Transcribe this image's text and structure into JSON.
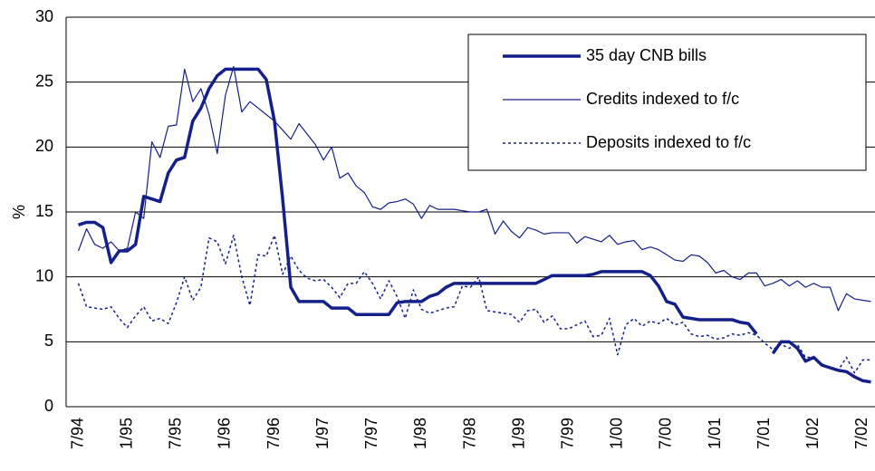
{
  "chart_data": {
    "type": "line",
    "y_label": "%",
    "ylim": [
      0,
      30
    ],
    "yticks": [
      0,
      5,
      10,
      15,
      20,
      25,
      30
    ],
    "grid": true,
    "legend": "upper right",
    "categories": [
      null,
      "7/94",
      null,
      null,
      null,
      null,
      null,
      "1/95",
      null,
      null,
      null,
      null,
      null,
      "7/95",
      null,
      null,
      null,
      null,
      null,
      "1/96",
      null,
      null,
      null,
      null,
      null,
      "7/96",
      null,
      null,
      null,
      null,
      null,
      "1/97",
      null,
      null,
      null,
      null,
      null,
      "7/97",
      null,
      null,
      null,
      null,
      null,
      "1/98",
      null,
      null,
      null,
      null,
      null,
      "7/98",
      null,
      null,
      null,
      null,
      null,
      "1/99",
      null,
      null,
      null,
      null,
      null,
      "7/99",
      null,
      null,
      null,
      null,
      null,
      "1/00",
      null,
      null,
      null,
      null,
      null,
      "7/00",
      null,
      null,
      null,
      null,
      null,
      "1/01",
      null,
      null,
      null,
      null,
      null,
      "7/01",
      null,
      null,
      null,
      null,
      null,
      "1/02",
      null,
      null,
      null,
      null,
      null,
      "7/02",
      null
    ],
    "series": [
      {
        "name": "35 day CNB bills",
        "color": "#14208a",
        "width": 3.5,
        "style": "solid",
        "values": [
          null,
          14,
          14.2,
          14.2,
          13.8,
          11.1,
          12,
          12,
          12.5,
          16.2,
          16,
          15.8,
          18,
          19,
          19.2,
          22,
          23,
          24.5,
          25.5,
          26,
          26,
          26,
          26,
          26,
          25.2,
          22,
          16,
          9.2,
          8.1,
          8.1,
          8.1,
          8.1,
          7.6,
          7.6,
          7.6,
          7.1,
          7.1,
          7.1,
          7.1,
          7.1,
          8.0,
          8.1,
          8.1,
          8.1,
          8.5,
          8.7,
          9.2,
          9.5,
          9.5,
          9.5,
          9.5,
          9.5,
          9.5,
          9.5,
          9.5,
          9.5,
          9.5,
          9.5,
          9.8,
          10.1,
          10.1,
          10.1,
          10.1,
          10.1,
          10.2,
          10.4,
          10.4,
          10.4,
          10.4,
          10.4,
          10.4,
          10.1,
          9.3,
          8.1,
          7.9,
          6.9,
          6.8,
          6.7,
          6.7,
          6.7,
          6.7,
          6.7,
          6.5,
          6.4,
          5.6,
          null,
          4.1,
          5.0,
          5.0,
          4.5,
          3.5,
          3.8,
          3.2,
          3.0,
          2.8,
          2.7,
          2.3,
          2.0,
          1.9
        ]
      },
      {
        "name": "Credits indexed to f/c",
        "color": "#14208a",
        "width": 1.2,
        "style": "solid",
        "values": [
          null,
          12,
          13.7,
          12.5,
          12.2,
          12.7,
          12,
          12.2,
          15,
          14.5,
          20.4,
          19.2,
          21.6,
          21.7,
          26,
          23.5,
          24.5,
          22.5,
          19.5,
          24,
          26.2,
          22.7,
          23.5,
          23,
          22.5,
          22,
          21.3,
          20.6,
          21.8,
          21,
          20.2,
          19,
          20,
          17.6,
          18,
          17,
          16.5,
          15.4,
          15.2,
          15.7,
          15.8,
          16,
          15.6,
          14.5,
          15.5,
          15.2,
          15.2,
          15.2,
          15.1,
          15,
          15,
          15.2,
          13.3,
          14.3,
          13.5,
          13,
          13.8,
          13.6,
          13.3,
          13.4,
          13.4,
          13.4,
          12.6,
          13.1,
          12.9,
          12.7,
          13.2,
          12.5,
          12.7,
          12.8,
          12.1,
          12.3,
          12.1,
          11.7,
          11.3,
          11.2,
          11.7,
          11.6,
          11.1,
          10.3,
          10.5,
          10,
          9.8,
          10.3,
          10.3,
          9.3,
          9.5,
          9.8,
          9.3,
          9.7,
          9.2,
          9.5,
          9.2,
          9.2,
          7.4,
          8.7,
          8.3,
          8.2,
          8.1
        ]
      },
      {
        "name": "Deposits indexed to f/c",
        "color": "#14208a",
        "width": 1.5,
        "style": "dotted",
        "values": [
          null,
          9.5,
          7.7,
          7.6,
          7.5,
          7.7,
          6.8,
          6.1,
          7,
          7.7,
          6.6,
          6.8,
          6.4,
          8,
          10,
          8.2,
          9.2,
          13,
          12.7,
          11,
          13.2,
          10,
          7.8,
          11.7,
          11.6,
          13.2,
          10.2,
          11.6,
          10.5,
          9.9,
          9.7,
          9.8,
          9.2,
          8.4,
          9.5,
          9.5,
          10.4,
          9.5,
          8.3,
          9.7,
          8.5,
          6.8,
          9,
          7.5,
          7.2,
          7.4,
          7.6,
          7.7,
          9.3,
          9.2,
          10,
          7.4,
          7.3,
          7.2,
          7.1,
          6.5,
          7.4,
          7.5,
          6.5,
          7,
          6,
          6,
          6.3,
          6.6,
          5.4,
          5.5,
          6.8,
          4,
          6.3,
          6.8,
          6.2,
          6.6,
          6.4,
          6.8,
          6.3,
          6.5,
          5.6,
          5.4,
          5.5,
          5.2,
          5.3,
          5.6,
          5.5,
          5.7,
          5.5,
          4.9,
          4.4,
          4.8,
          4.5,
          4.8,
          3.8,
          3.8,
          3.3,
          3.0,
          2.8,
          3.8,
          2.6,
          3.6,
          3.6
        ]
      }
    ]
  }
}
